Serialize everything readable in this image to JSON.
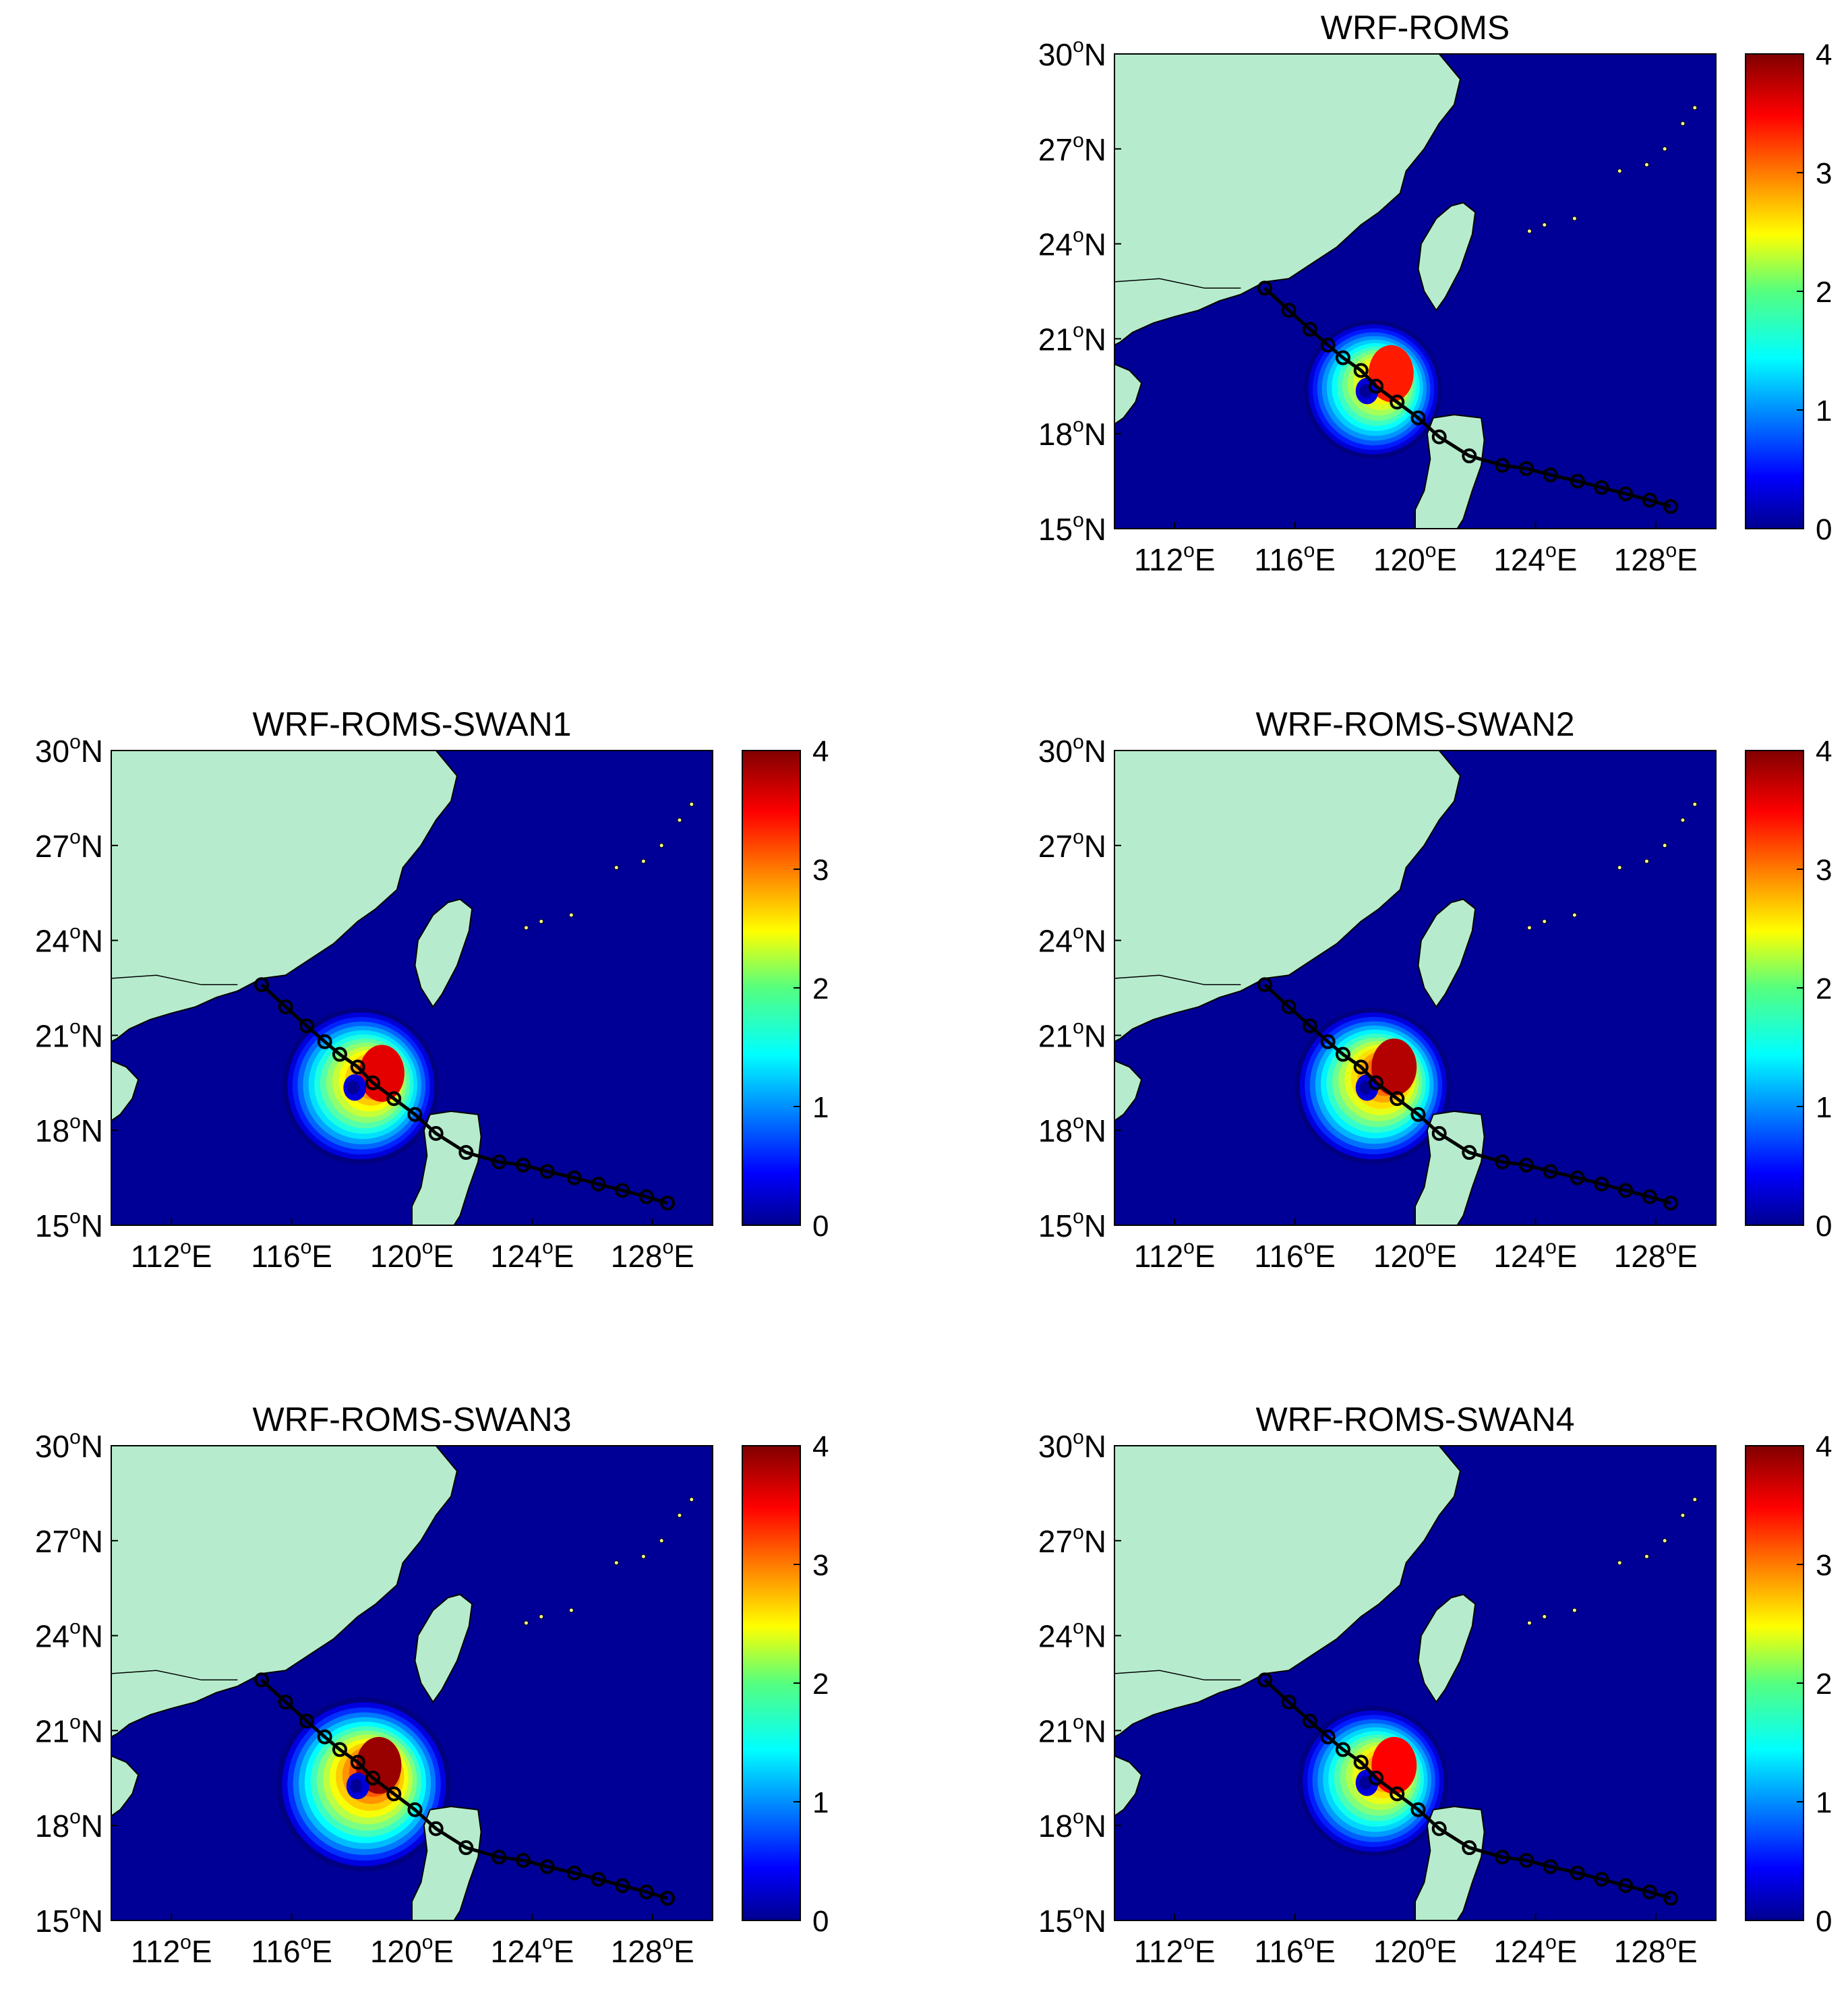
{
  "figure": {
    "colorbar": {
      "ticks": [
        "0",
        "1",
        "2",
        "3",
        "4"
      ],
      "min": 0,
      "max": 4,
      "colormap": "jet"
    },
    "axes": {
      "lat_ticks": [
        {
          "deg": "15",
          "sup": "o",
          "hem": "N"
        },
        {
          "deg": "18",
          "sup": "o",
          "hem": "N"
        },
        {
          "deg": "21",
          "sup": "o",
          "hem": "N"
        },
        {
          "deg": "24",
          "sup": "o",
          "hem": "N"
        },
        {
          "deg": "27",
          "sup": "o",
          "hem": "N"
        },
        {
          "deg": "30",
          "sup": "o",
          "hem": "N"
        }
      ],
      "lon_ticks": [
        {
          "deg": "112",
          "sup": "o",
          "hem": "E"
        },
        {
          "deg": "116",
          "sup": "o",
          "hem": "E"
        },
        {
          "deg": "120",
          "sup": "o",
          "hem": "E"
        },
        {
          "deg": "124",
          "sup": "o",
          "hem": "E"
        },
        {
          "deg": "128",
          "sup": "o",
          "hem": "E"
        }
      ],
      "lon_range": [
        110,
        130
      ],
      "lat_range": [
        15,
        30
      ]
    },
    "colors": {
      "land": "#b6eccd",
      "ocean_low": "#000096",
      "track": "#000000"
    },
    "track_points": [
      [
        115.0,
        22.6
      ],
      [
        115.8,
        21.9
      ],
      [
        116.5,
        21.3
      ],
      [
        117.1,
        20.8
      ],
      [
        117.6,
        20.4
      ],
      [
        118.2,
        20.0
      ],
      [
        118.7,
        19.5
      ],
      [
        119.4,
        19.0
      ],
      [
        120.1,
        18.5
      ],
      [
        120.8,
        17.9
      ],
      [
        121.8,
        17.3
      ],
      [
        122.9,
        17.0
      ],
      [
        123.7,
        16.9
      ],
      [
        124.5,
        16.7
      ],
      [
        125.4,
        16.5
      ],
      [
        126.2,
        16.3
      ],
      [
        127.0,
        16.1
      ],
      [
        127.8,
        15.9
      ],
      [
        128.5,
        15.7
      ]
    ],
    "panels": [
      {
        "title": "WRF-ROMS",
        "storm_center": [
          118.6,
          19.4
        ],
        "max_value": 3.4,
        "peak_offset": [
          0.6,
          0.5
        ],
        "spread": 2.3
      },
      {
        "title": "WRF-ROMS-SWAN1",
        "storm_center": [
          118.3,
          19.4
        ],
        "max_value": 3.6,
        "peak_offset": [
          0.7,
          0.4
        ],
        "spread": 2.6
      },
      {
        "title": "WRF-ROMS-SWAN2",
        "storm_center": [
          118.6,
          19.4
        ],
        "max_value": 3.8,
        "peak_offset": [
          0.7,
          0.6
        ],
        "spread": 2.6
      },
      {
        "title": "WRF-ROMS-SWAN3",
        "storm_center": [
          118.4,
          19.3
        ],
        "max_value": 3.9,
        "peak_offset": [
          0.5,
          0.6
        ],
        "spread": 2.9
      },
      {
        "title": "WRF-ROMS-SWAN4",
        "storm_center": [
          118.6,
          19.4
        ],
        "max_value": 3.5,
        "peak_offset": [
          0.7,
          0.5
        ],
        "spread": 2.5
      }
    ]
  }
}
